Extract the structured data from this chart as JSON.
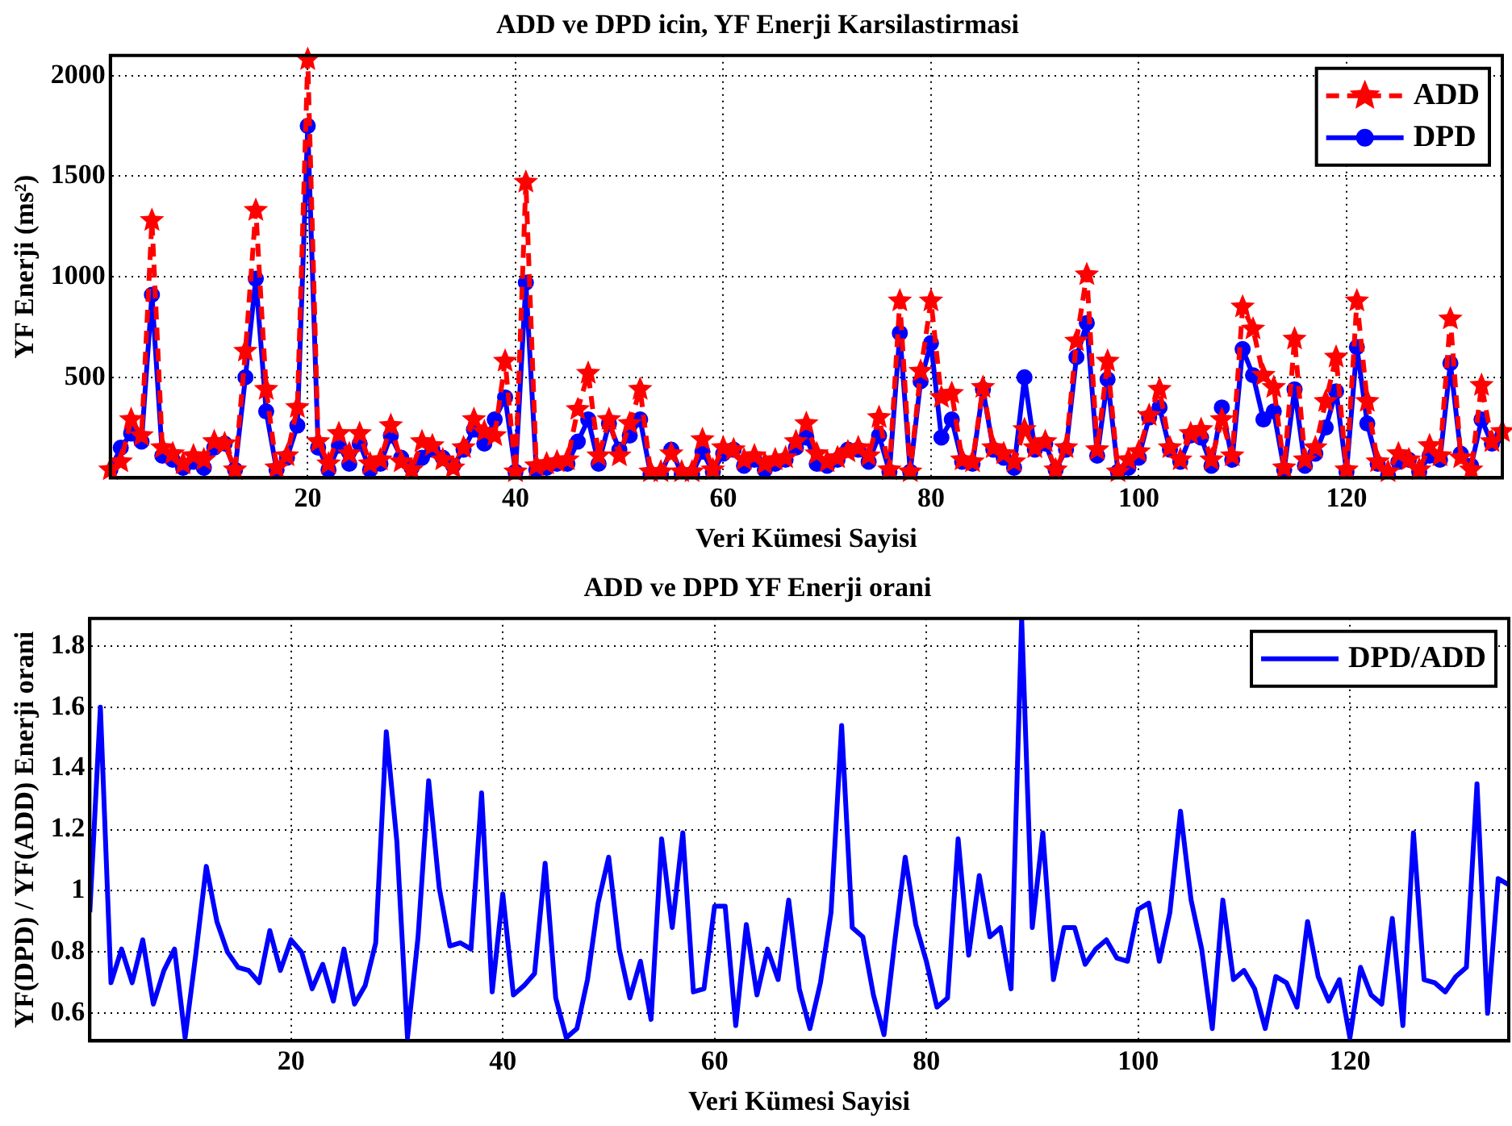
{
  "chart_data": [
    {
      "type": "line",
      "title": "ADD ve DPD icin, YF Enerji Karsilastirmasi",
      "xlabel": "Veri Kümesi Sayisi",
      "ylabel": "YF Enerji (ms²)",
      "x": [
        1,
        2,
        3,
        4,
        5,
        6,
        7,
        8,
        9,
        10,
        11,
        12,
        13,
        14,
        15,
        16,
        17,
        18,
        19,
        20,
        21,
        22,
        23,
        24,
        25,
        26,
        27,
        28,
        29,
        30,
        31,
        32,
        33,
        34,
        35,
        36,
        37,
        38,
        39,
        40,
        41,
        42,
        43,
        44,
        45,
        46,
        47,
        48,
        49,
        50,
        51,
        52,
        53,
        54,
        55,
        56,
        57,
        58,
        59,
        60,
        61,
        62,
        63,
        64,
        65,
        66,
        67,
        68,
        69,
        70,
        71,
        72,
        73,
        74,
        75,
        76,
        77,
        78,
        79,
        80,
        81,
        82,
        83,
        84,
        85,
        86,
        87,
        88,
        89,
        90,
        91,
        92,
        93,
        94,
        95,
        96,
        97,
        98,
        99,
        100,
        101,
        102,
        103,
        104,
        105,
        106,
        107,
        108,
        109,
        110,
        111,
        112,
        113,
        114,
        115,
        116,
        117,
        118,
        119,
        120,
        121,
        122,
        123,
        124,
        125,
        126,
        127,
        128,
        129,
        130,
        131,
        132,
        133,
        134,
        135
      ],
      "series": [
        {
          "name": "ADD",
          "color": "#ff0000",
          "marker": "star",
          "line_style": "dashed",
          "values": [
            40,
            80,
            290,
            210,
            1280,
            150,
            120,
            70,
            110,
            90,
            180,
            170,
            40,
            630,
            1330,
            440,
            50,
            110,
            350,
            2080,
            180,
            70,
            220,
            120,
            220,
            70,
            90,
            260,
            80,
            40,
            180,
            160,
            90,
            50,
            150,
            290,
            230,
            210,
            580,
            30,
            1470,
            60,
            70,
            80,
            90,
            340,
            520,
            110,
            290,
            110,
            270,
            440,
            30,
            30,
            120,
            30,
            30,
            190,
            40,
            150,
            140,
            90,
            110,
            70,
            90,
            100,
            180,
            270,
            120,
            80,
            100,
            130,
            150,
            110,
            300,
            40,
            880,
            30,
            530,
            880,
            400,
            420,
            90,
            80,
            450,
            150,
            120,
            80,
            240,
            150,
            180,
            40,
            150,
            680,
            1010,
            140,
            580,
            30,
            90,
            130,
            310,
            440,
            150,
            90,
            220,
            240,
            90,
            290,
            110,
            850,
            740,
            510,
            450,
            50,
            690,
            90,
            150,
            380,
            600,
            40,
            880,
            380,
            80,
            30,
            120,
            90,
            40,
            160,
            110,
            790,
            100,
            40,
            460,
            180,
            230
          ]
        },
        {
          "name": "DPD",
          "color": "#0000ff",
          "marker": "circle",
          "line_style": "solid",
          "values": [
            40,
            150,
            220,
            180,
            910,
            110,
            90,
            50,
            80,
            50,
            150,
            170,
            40,
            500,
            990,
            330,
            40,
            100,
            260,
            1750,
            150,
            40,
            160,
            70,
            170,
            40,
            70,
            210,
            100,
            50,
            100,
            140,
            100,
            60,
            140,
            240,
            170,
            290,
            400,
            30,
            970,
            40,
            50,
            70,
            70,
            180,
            290,
            70,
            270,
            140,
            210,
            290,
            20,
            20,
            140,
            20,
            20,
            130,
            30,
            120,
            140,
            60,
            90,
            40,
            70,
            90,
            150,
            200,
            70,
            60,
            90,
            140,
            140,
            80,
            210,
            30,
            720,
            30,
            480,
            670,
            200,
            290,
            80,
            70,
            440,
            140,
            100,
            50,
            500,
            140,
            170,
            40,
            140,
            600,
            770,
            110,
            490,
            30,
            50,
            100,
            300,
            350,
            140,
            80,
            210,
            200,
            60,
            350,
            90,
            640,
            510,
            290,
            330,
            40,
            440,
            60,
            120,
            250,
            430,
            30,
            650,
            270,
            70,
            10,
            80,
            90,
            30,
            110,
            90,
            570,
            120,
            60,
            290,
            170,
            210
          ]
        }
      ],
      "xlim": [
        1,
        135
      ],
      "xticks": [
        20,
        40,
        60,
        80,
        100,
        120
      ],
      "ylim": [
        0,
        2100
      ],
      "yticks": [
        500,
        1000,
        1500,
        2000
      ],
      "grid": true,
      "legend": "top right"
    },
    {
      "type": "line",
      "title": "ADD ve DPD YF Enerji orani",
      "xlabel": "Veri Kümesi Sayisi",
      "ylabel": "YF(DPD) / YF(ADD) Enerji orani",
      "x": [
        1,
        2,
        3,
        4,
        5,
        6,
        7,
        8,
        9,
        10,
        11,
        12,
        13,
        14,
        15,
        16,
        17,
        18,
        19,
        20,
        21,
        22,
        23,
        24,
        25,
        26,
        27,
        28,
        29,
        30,
        31,
        32,
        33,
        34,
        35,
        36,
        37,
        38,
        39,
        40,
        41,
        42,
        43,
        44,
        45,
        46,
        47,
        48,
        49,
        50,
        51,
        52,
        53,
        54,
        55,
        56,
        57,
        58,
        59,
        60,
        61,
        62,
        63,
        64,
        65,
        66,
        67,
        68,
        69,
        70,
        71,
        72,
        73,
        74,
        75,
        76,
        77,
        78,
        79,
        80,
        81,
        82,
        83,
        84,
        85,
        86,
        87,
        88,
        89,
        90,
        91,
        92,
        93,
        94,
        95,
        96,
        97,
        98,
        99,
        100,
        101,
        102,
        103,
        104,
        105,
        106,
        107,
        108,
        109,
        110,
        111,
        112,
        113,
        114,
        115,
        116,
        117,
        118,
        119,
        120,
        121,
        122,
        123,
        124,
        125,
        126,
        127,
        128,
        129,
        130,
        131,
        132,
        133,
        134,
        135
      ],
      "series": [
        {
          "name": "DPD/ADD",
          "color": "#0000ff",
          "marker": "none",
          "line_style": "solid",
          "values": [
            0.93,
            1.6,
            0.7,
            0.81,
            0.7,
            0.84,
            0.63,
            0.74,
            0.81,
            0.52,
            0.79,
            1.08,
            0.9,
            0.8,
            0.75,
            0.74,
            0.7,
            0.87,
            0.74,
            0.84,
            0.8,
            0.68,
            0.76,
            0.64,
            0.81,
            0.63,
            0.69,
            0.83,
            1.52,
            1.16,
            0.52,
            0.85,
            1.36,
            1.01,
            0.82,
            0.83,
            0.81,
            1.32,
            0.67,
            0.99,
            0.66,
            0.69,
            0.73,
            1.09,
            0.65,
            0.52,
            0.55,
            0.71,
            0.96,
            1.11,
            0.81,
            0.65,
            0.77,
            0.58,
            1.17,
            0.88,
            1.19,
            0.67,
            0.68,
            0.95,
            0.95,
            0.56,
            0.89,
            0.66,
            0.81,
            0.71,
            0.97,
            0.68,
            0.55,
            0.7,
            0.93,
            1.54,
            0.88,
            0.85,
            0.66,
            0.53,
            0.83,
            1.11,
            0.89,
            0.77,
            0.62,
            0.65,
            1.17,
            0.79,
            1.05,
            0.85,
            0.88,
            0.68,
            1.89,
            0.88,
            1.19,
            0.71,
            0.88,
            0.88,
            0.76,
            0.81,
            0.84,
            0.78,
            0.77,
            0.94,
            0.96,
            0.77,
            0.93,
            1.26,
            0.97,
            0.81,
            0.55,
            0.97,
            0.71,
            0.74,
            0.68,
            0.55,
            0.72,
            0.7,
            0.62,
            0.9,
            0.72,
            0.64,
            0.71,
            0.52,
            0.75,
            0.66,
            0.63,
            0.91,
            0.56,
            1.19,
            0.71,
            0.7,
            0.67,
            0.72,
            0.75,
            1.35,
            0.6,
            1.04,
            1.02
          ]
        }
      ],
      "xlim": [
        1,
        135
      ],
      "xticks": [
        20,
        40,
        60,
        80,
        100,
        120
      ],
      "ylim": [
        0.51,
        1.89
      ],
      "yticks": [
        0.6,
        0.8,
        1,
        1.2,
        1.4,
        1.6,
        1.8
      ],
      "grid": true,
      "legend": "top right"
    }
  ]
}
